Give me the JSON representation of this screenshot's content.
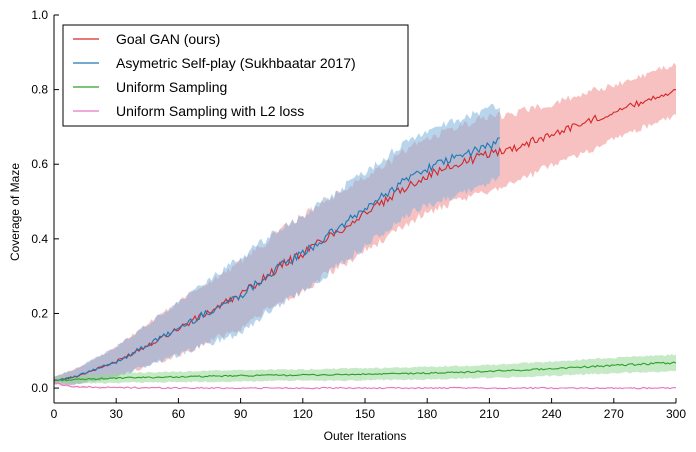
{
  "chart_data": {
    "type": "line",
    "xlabel": "Outer Iterations",
    "ylabel": "Coverage of Maze",
    "xlim": [
      0,
      300
    ],
    "ylim": [
      -0.04,
      1.0
    ],
    "xticks": [
      0,
      30,
      60,
      90,
      120,
      150,
      180,
      210,
      240,
      270,
      300
    ],
    "yticks": [
      0.0,
      0.2,
      0.4,
      0.6,
      0.8,
      1.0
    ],
    "ytick_labels": [
      "0.0",
      "0.2",
      "0.4",
      "0.6",
      "0.8",
      "1.0"
    ],
    "grid": false,
    "legend_position": "top-left",
    "series": [
      {
        "name": "Goal GAN (ours)",
        "color": "#d62728",
        "band_color": "#f28e8e",
        "x": [
          0,
          10,
          20,
          30,
          40,
          50,
          60,
          70,
          80,
          90,
          100,
          110,
          120,
          130,
          140,
          150,
          160,
          170,
          180,
          190,
          200,
          210,
          220,
          230,
          240,
          250,
          260,
          270,
          280,
          290,
          300
        ],
        "y": [
          0.02,
          0.03,
          0.05,
          0.07,
          0.1,
          0.13,
          0.16,
          0.19,
          0.22,
          0.25,
          0.29,
          0.33,
          0.36,
          0.4,
          0.43,
          0.47,
          0.5,
          0.54,
          0.57,
          0.59,
          0.61,
          0.63,
          0.64,
          0.66,
          0.68,
          0.7,
          0.72,
          0.74,
          0.76,
          0.78,
          0.8
        ],
        "spread": [
          0.01,
          0.02,
          0.03,
          0.04,
          0.05,
          0.06,
          0.07,
          0.08,
          0.08,
          0.09,
          0.09,
          0.1,
          0.1,
          0.1,
          0.1,
          0.1,
          0.1,
          0.1,
          0.1,
          0.1,
          0.1,
          0.1,
          0.09,
          0.09,
          0.08,
          0.08,
          0.08,
          0.07,
          0.07,
          0.07,
          0.07
        ]
      },
      {
        "name": "Asymetric Self-play (Sukhbaatar 2017)",
        "color": "#1f77b4",
        "band_color": "#7fb2dc",
        "x": [
          0,
          10,
          20,
          30,
          40,
          50,
          60,
          70,
          80,
          90,
          100,
          110,
          120,
          130,
          140,
          150,
          160,
          170,
          180,
          190,
          200,
          210,
          215
        ],
        "y": [
          0.02,
          0.03,
          0.05,
          0.07,
          0.1,
          0.13,
          0.16,
          0.19,
          0.22,
          0.25,
          0.29,
          0.33,
          0.36,
          0.4,
          0.44,
          0.48,
          0.52,
          0.56,
          0.59,
          0.61,
          0.63,
          0.65,
          0.66
        ],
        "spread": [
          0.01,
          0.02,
          0.03,
          0.04,
          0.05,
          0.06,
          0.07,
          0.08,
          0.09,
          0.1,
          0.1,
          0.1,
          0.1,
          0.1,
          0.1,
          0.1,
          0.1,
          0.1,
          0.1,
          0.1,
          0.1,
          0.1,
          0.1
        ]
      },
      {
        "name": "Uniform Sampling",
        "color": "#2ca02c",
        "band_color": "#98d895",
        "x": [
          0,
          20,
          40,
          60,
          80,
          100,
          120,
          140,
          160,
          180,
          200,
          220,
          240,
          260,
          280,
          300
        ],
        "y": [
          0.02,
          0.025,
          0.028,
          0.03,
          0.032,
          0.034,
          0.035,
          0.036,
          0.038,
          0.04,
          0.043,
          0.047,
          0.052,
          0.058,
          0.063,
          0.068
        ],
        "spread": [
          0.01,
          0.012,
          0.013,
          0.014,
          0.015,
          0.015,
          0.015,
          0.016,
          0.016,
          0.017,
          0.017,
          0.018,
          0.019,
          0.02,
          0.021,
          0.022
        ]
      },
      {
        "name": "Uniform Sampling with L2 loss",
        "color": "#e377c2",
        "band_color": "#f4b9df",
        "x": [
          0,
          5,
          10,
          20,
          40,
          80,
          120,
          160,
          200,
          250,
          300
        ],
        "y": [
          0.015,
          0.008,
          0.004,
          0.002,
          0.001,
          0.0,
          0.0,
          0.0,
          0.0,
          0.0,
          0.0
        ],
        "spread": [
          0.004,
          0.003,
          0.002,
          0.001,
          0.0,
          0.0,
          0.0,
          0.0,
          0.0,
          0.0,
          0.0
        ]
      }
    ]
  }
}
